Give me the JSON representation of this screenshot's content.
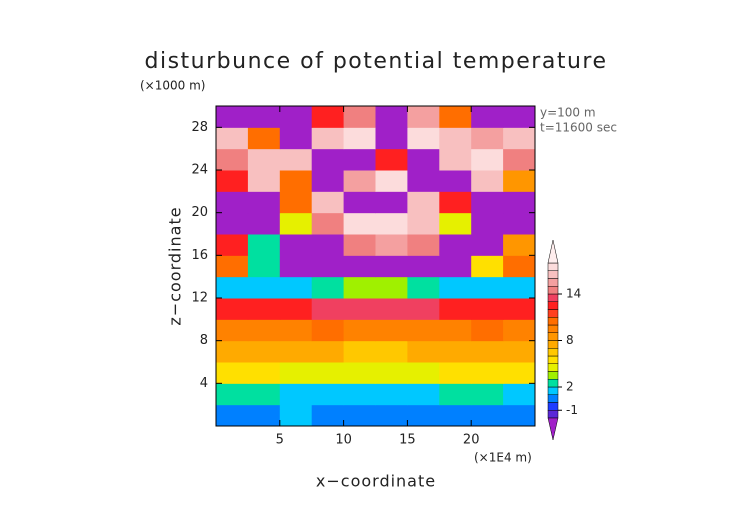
{
  "chart_data": {
    "type": "shaded-contour",
    "title": "disturbunce of potential temperature",
    "y_unit_label": "(×1000 m)",
    "x_unit_label": "(×1E4 m)",
    "annotations": [
      "y=100 m",
      "t=11600 sec"
    ],
    "xlabel": "x−coordinate",
    "ylabel": "z−coordinate",
    "xlim": [
      0,
      25
    ],
    "ylim": [
      0,
      30
    ],
    "xticks": [
      5,
      10,
      15,
      20
    ],
    "yticks": [
      4,
      8,
      12,
      16,
      20,
      24,
      28
    ],
    "xbins": [
      0,
      2.5,
      5,
      7.5,
      10,
      12.5,
      15,
      17.5,
      20,
      22.5,
      25
    ],
    "ybins": [
      0,
      2,
      4,
      6,
      8,
      10,
      12,
      14,
      16,
      18,
      20,
      22,
      24,
      26,
      28,
      30
    ],
    "values": [
      [
        0,
        0,
        1,
        0,
        0,
        0,
        0,
        0,
        0,
        0
      ],
      [
        2,
        2,
        1,
        1,
        1,
        1,
        1,
        2,
        2,
        1
      ],
      [
        5,
        5,
        4,
        4,
        4,
        4,
        4,
        5,
        5,
        5
      ],
      [
        7,
        7,
        7,
        7,
        6,
        6,
        7,
        7,
        7,
        7
      ],
      [
        9,
        9,
        9,
        10,
        9,
        9,
        9,
        9,
        10,
        9
      ],
      [
        12,
        12,
        12,
        13,
        13,
        13,
        13,
        12,
        12,
        12
      ],
      [
        1,
        1,
        1,
        2,
        3,
        3,
        2,
        1,
        1,
        1
      ],
      [
        10,
        2,
        -3,
        -3,
        -3,
        -3,
        -3,
        -3,
        5,
        10
      ],
      [
        12,
        2,
        -3,
        -3,
        14,
        15,
        14,
        -3,
        -3,
        8
      ],
      [
        -3,
        -3,
        4,
        14,
        17,
        17,
        16,
        4,
        -3,
        -3
      ],
      [
        -3,
        -3,
        10,
        16,
        -3,
        -3,
        16,
        12,
        -3,
        -3
      ],
      [
        12,
        16,
        10,
        -3,
        15,
        17,
        -3,
        -3,
        16,
        8
      ],
      [
        14,
        16,
        16,
        -3,
        -3,
        12,
        -3,
        16,
        17,
        14
      ],
      [
        16,
        10,
        -3,
        16,
        17,
        -3,
        17,
        16,
        15,
        16
      ],
      [
        -3,
        -3,
        -3,
        12,
        14,
        -3,
        15,
        10,
        -3,
        -3
      ]
    ],
    "levels": [
      -2,
      -1,
      0,
      1,
      2,
      3,
      4,
      5,
      6,
      7,
      8,
      9,
      10,
      11,
      12,
      13,
      14,
      15,
      16,
      17,
      18
    ],
    "colors": [
      "#a020c8",
      "#5a28d8",
      "#1e3cff",
      "#0080ff",
      "#00c8ff",
      "#00e0a0",
      "#a0f000",
      "#e6f000",
      "#ffe000",
      "#ffc800",
      "#ffaa00",
      "#ff9600",
      "#ff8200",
      "#ff6e00",
      "#ff4020",
      "#ff2020",
      "#f04060",
      "#f08080",
      "#f4a0a0",
      "#f8c0c0",
      "#fcdcdc",
      "#ffeeee"
    ],
    "cbar_ticks": [
      -1,
      2,
      8,
      14
    ]
  }
}
